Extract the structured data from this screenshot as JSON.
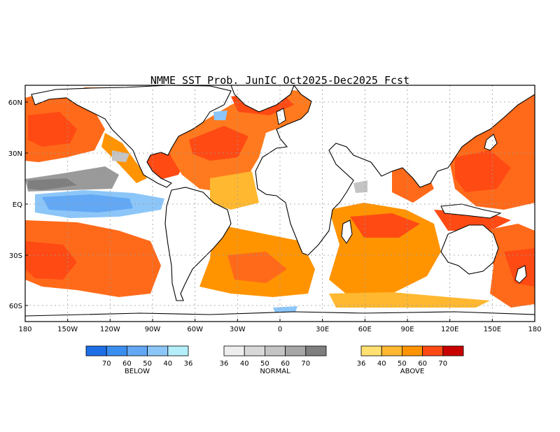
{
  "title": "NMME SST Prob. JunIC  Oct2025-Dec2025 Fcst",
  "lat_ticks": [
    "60N",
    "30N",
    "EQ",
    "30S",
    "60S"
  ],
  "lon_ticks": [
    "180",
    "150W",
    "120W",
    "90W",
    "60W",
    "30W",
    "0",
    "30E",
    "60E",
    "90E",
    "120E",
    "150E",
    "180"
  ],
  "colors": {
    "land": "#ffffff",
    "coast": "#000000",
    "grid": "#9a9a9a",
    "below": [
      "#1e6fe6",
      "#3a8ef0",
      "#62a8f5",
      "#8cc6f8",
      "#b4eefa"
    ],
    "normal": [
      "#eeeeee",
      "#d8d8d8",
      "#c4c4c4",
      "#a6a6a6",
      "#7f7f7f"
    ],
    "above": [
      "#ffe070",
      "#ffb830",
      "#ff9400",
      "#ff4a14",
      "#c80000"
    ]
  },
  "legends": [
    {
      "name": "BELOW",
      "labels": [
        "70",
        "60",
        "50",
        "40",
        "36"
      ]
    },
    {
      "name": "NORMAL",
      "labels": [
        "36",
        "40",
        "50",
        "60",
        "70"
      ]
    },
    {
      "name": "ABOVE",
      "labels": [
        "36",
        "40",
        "50",
        "60",
        "70"
      ]
    }
  ]
}
